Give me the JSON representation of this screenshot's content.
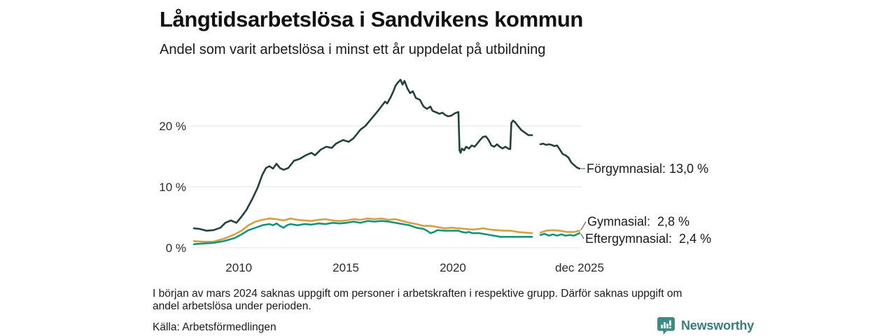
{
  "header": {
    "title": "Långtidsarbetslösa i Sandvikens kommun",
    "subtitle": "Andel som varit arbetslösa i minst ett år uppdelat på utbildning"
  },
  "chart_data": {
    "type": "line",
    "title": "Långtidsarbetslösa i Sandvikens kommun",
    "subtitle": "Andel som varit arbetslösa i minst ett år uppdelat på utbildning",
    "unit": "%",
    "xlim": [
      2007.9,
      2025.92
    ],
    "ylim": [
      0,
      29
    ],
    "grid": true,
    "grid_color": "#e3e3e3",
    "leader_color": "#4a4a4a",
    "yticks": [
      {
        "value": 0,
        "label": "0 %"
      },
      {
        "value": 10,
        "label": "10 %"
      },
      {
        "value": 20,
        "label": "20 %"
      }
    ],
    "xticks": [
      {
        "year": 2010,
        "label": "2010"
      },
      {
        "year": 2015,
        "label": "2015"
      },
      {
        "year": 2020,
        "label": "2020"
      },
      {
        "year": 2025.92,
        "label": "dec 2025"
      }
    ],
    "legend_position": "end-of-line-labels",
    "series": [
      {
        "name": "Förgymnasial",
        "color": "#24423d",
        "end_value": 13.0,
        "end_label": "Förgymnasial: 13,0 %",
        "segments": [
          [
            [
              2007.9,
              3.2
            ],
            [
              2008.16,
              3.1
            ],
            [
              2008.49,
              2.8
            ],
            [
              2008.82,
              2.9
            ],
            [
              2009.14,
              3.3
            ],
            [
              2009.37,
              4.1
            ],
            [
              2009.63,
              4.5
            ],
            [
              2009.89,
              4.1
            ],
            [
              2010.12,
              5.1
            ],
            [
              2010.35,
              6.2
            ],
            [
              2010.61,
              7.9
            ],
            [
              2010.88,
              9.9
            ],
            [
              2011.1,
              12.0
            ],
            [
              2011.27,
              13.1
            ],
            [
              2011.43,
              13.4
            ],
            [
              2011.6,
              13.0
            ],
            [
              2011.76,
              13.8
            ],
            [
              2011.92,
              13.1
            ],
            [
              2012.09,
              12.8
            ],
            [
              2012.31,
              13.1
            ],
            [
              2012.58,
              14.3
            ],
            [
              2012.84,
              14.6
            ],
            [
              2013.13,
              15.2
            ],
            [
              2013.39,
              15.6
            ],
            [
              2013.56,
              15.2
            ],
            [
              2013.82,
              16.1
            ],
            [
              2014.08,
              16.6
            ],
            [
              2014.34,
              16.4
            ],
            [
              2014.54,
              17.1
            ],
            [
              2014.87,
              17.7
            ],
            [
              2015.13,
              17.4
            ],
            [
              2015.36,
              18.0
            ],
            [
              2015.68,
              19.4
            ],
            [
              2015.91,
              20.0
            ],
            [
              2016.17,
              21.1
            ],
            [
              2016.5,
              22.5
            ],
            [
              2016.83,
              24.0
            ],
            [
              2016.93,
              23.7
            ],
            [
              2017.09,
              24.7
            ],
            [
              2017.22,
              25.7
            ],
            [
              2017.32,
              26.6
            ],
            [
              2017.42,
              27.1
            ],
            [
              2017.55,
              27.6
            ],
            [
              2017.65,
              26.8
            ],
            [
              2017.74,
              27.4
            ],
            [
              2017.87,
              26.2
            ],
            [
              2018.0,
              25.4
            ],
            [
              2018.13,
              25.7
            ],
            [
              2018.27,
              24.6
            ],
            [
              2018.46,
              24.3
            ],
            [
              2018.63,
              23.2
            ],
            [
              2018.79,
              22.8
            ],
            [
              2018.95,
              23.2
            ],
            [
              2019.05,
              22.5
            ],
            [
              2019.18,
              22.3
            ],
            [
              2019.38,
              22.0
            ],
            [
              2019.51,
              22.2
            ],
            [
              2019.64,
              21.8
            ],
            [
              2019.77,
              21.6
            ],
            [
              2019.93,
              21.7
            ],
            [
              2020.1,
              22.1
            ],
            [
              2020.26,
              22.3
            ],
            [
              2020.31,
              16.0
            ],
            [
              2020.36,
              15.6
            ],
            [
              2020.42,
              16.3
            ],
            [
              2020.52,
              16.0
            ],
            [
              2020.62,
              16.6
            ],
            [
              2020.75,
              16.3
            ],
            [
              2020.88,
              16.8
            ],
            [
              2021.01,
              16.6
            ],
            [
              2021.14,
              17.1
            ],
            [
              2021.27,
              17.7
            ],
            [
              2021.4,
              18.2
            ],
            [
              2021.54,
              18.3
            ],
            [
              2021.67,
              17.7
            ],
            [
              2021.8,
              16.8
            ],
            [
              2021.93,
              16.6
            ],
            [
              2022.06,
              17.0
            ],
            [
              2022.19,
              16.6
            ],
            [
              2022.32,
              16.3
            ],
            [
              2022.45,
              16.6
            ],
            [
              2022.58,
              16.3
            ],
            [
              2022.68,
              16.2
            ],
            [
              2022.73,
              20.5
            ],
            [
              2022.81,
              20.9
            ],
            [
              2022.91,
              20.6
            ],
            [
              2023.04,
              20.0
            ],
            [
              2023.21,
              19.3
            ],
            [
              2023.37,
              18.9
            ],
            [
              2023.53,
              18.5
            ],
            [
              2023.7,
              18.5
            ]
          ],
          [
            [
              2024.09,
              17.0
            ],
            [
              2024.22,
              17.1
            ],
            [
              2024.35,
              16.9
            ],
            [
              2024.48,
              17.0
            ],
            [
              2024.61,
              16.9
            ],
            [
              2024.74,
              16.7
            ],
            [
              2024.87,
              16.8
            ],
            [
              2025.0,
              16.1
            ],
            [
              2025.13,
              15.4
            ],
            [
              2025.26,
              15.2
            ],
            [
              2025.4,
              14.8
            ],
            [
              2025.53,
              14.0
            ],
            [
              2025.66,
              13.6
            ],
            [
              2025.79,
              13.2
            ],
            [
              2025.92,
              13.0
            ]
          ]
        ]
      },
      {
        "name": "Gymnasial",
        "color": "#d5a044",
        "end_value": 2.8,
        "end_label": "Gymnasial:  2,8 %",
        "segments": [
          [
            [
              2007.9,
              1.1
            ],
            [
              2008.33,
              1.0
            ],
            [
              2008.82,
              1.0
            ],
            [
              2009.31,
              1.5
            ],
            [
              2009.8,
              2.2
            ],
            [
              2010.12,
              2.8
            ],
            [
              2010.45,
              3.7
            ],
            [
              2010.78,
              4.3
            ],
            [
              2011.1,
              4.6
            ],
            [
              2011.43,
              4.8
            ],
            [
              2011.76,
              4.7
            ],
            [
              2012.09,
              4.5
            ],
            [
              2012.41,
              4.8
            ],
            [
              2012.74,
              4.6
            ],
            [
              2013.07,
              4.5
            ],
            [
              2013.39,
              4.4
            ],
            [
              2013.72,
              4.6
            ],
            [
              2014.05,
              4.7
            ],
            [
              2014.38,
              4.5
            ],
            [
              2014.7,
              4.4
            ],
            [
              2015.03,
              4.5
            ],
            [
              2015.36,
              4.7
            ],
            [
              2015.68,
              4.6
            ],
            [
              2016.01,
              4.8
            ],
            [
              2016.34,
              4.7
            ],
            [
              2016.66,
              4.8
            ],
            [
              2016.99,
              4.6
            ],
            [
              2017.32,
              4.7
            ],
            [
              2017.65,
              4.4
            ],
            [
              2017.97,
              4.1
            ],
            [
              2018.3,
              3.9
            ],
            [
              2018.63,
              3.6
            ],
            [
              2018.95,
              3.6
            ],
            [
              2019.28,
              3.4
            ],
            [
              2019.61,
              3.2
            ],
            [
              2019.93,
              3.3
            ],
            [
              2020.26,
              3.2
            ],
            [
              2020.59,
              3.1
            ],
            [
              2020.91,
              3.0
            ],
            [
              2021.24,
              3.1
            ],
            [
              2021.4,
              3.2
            ],
            [
              2021.73,
              3.0
            ],
            [
              2022.06,
              2.9
            ],
            [
              2022.39,
              2.8
            ],
            [
              2022.71,
              2.8
            ],
            [
              2023.04,
              2.6
            ],
            [
              2023.37,
              2.5
            ],
            [
              2023.7,
              2.4
            ]
          ],
          [
            [
              2024.09,
              2.5
            ],
            [
              2024.35,
              2.8
            ],
            [
              2024.67,
              2.9
            ],
            [
              2025.0,
              2.8
            ],
            [
              2025.33,
              2.6
            ],
            [
              2025.66,
              2.6
            ],
            [
              2025.92,
              2.8
            ]
          ]
        ]
      },
      {
        "name": "Eftergymnasial",
        "color": "#12957f",
        "end_value": 2.4,
        "end_label": "Eftergymnasial:  2,4 %",
        "segments": [
          [
            [
              2007.9,
              0.6
            ],
            [
              2008.33,
              0.7
            ],
            [
              2008.82,
              0.8
            ],
            [
              2009.31,
              1.1
            ],
            [
              2009.8,
              1.6
            ],
            [
              2010.12,
              2.2
            ],
            [
              2010.45,
              2.9
            ],
            [
              2010.78,
              3.3
            ],
            [
              2011.1,
              3.7
            ],
            [
              2011.43,
              3.9
            ],
            [
              2011.6,
              3.7
            ],
            [
              2011.76,
              4.0
            ],
            [
              2011.92,
              3.6
            ],
            [
              2012.09,
              3.3
            ],
            [
              2012.25,
              3.7
            ],
            [
              2012.41,
              3.9
            ],
            [
              2012.74,
              3.7
            ],
            [
              2013.07,
              3.9
            ],
            [
              2013.39,
              3.8
            ],
            [
              2013.72,
              4.0
            ],
            [
              2014.05,
              3.9
            ],
            [
              2014.38,
              4.1
            ],
            [
              2014.7,
              4.0
            ],
            [
              2015.03,
              4.1
            ],
            [
              2015.36,
              4.3
            ],
            [
              2015.68,
              4.1
            ],
            [
              2016.01,
              4.4
            ],
            [
              2016.34,
              4.3
            ],
            [
              2016.66,
              4.4
            ],
            [
              2016.99,
              4.3
            ],
            [
              2017.32,
              4.1
            ],
            [
              2017.65,
              3.9
            ],
            [
              2017.97,
              3.7
            ],
            [
              2018.3,
              3.3
            ],
            [
              2018.63,
              3.1
            ],
            [
              2018.79,
              2.8
            ],
            [
              2018.95,
              2.4
            ],
            [
              2019.12,
              2.6
            ],
            [
              2019.28,
              2.9
            ],
            [
              2019.61,
              2.8
            ],
            [
              2019.93,
              2.8
            ],
            [
              2020.26,
              2.8
            ],
            [
              2020.42,
              2.6
            ],
            [
              2020.59,
              2.5
            ],
            [
              2020.75,
              2.6
            ],
            [
              2020.91,
              2.4
            ],
            [
              2021.24,
              2.4
            ],
            [
              2021.57,
              2.2
            ],
            [
              2021.9,
              2.0
            ],
            [
              2022.22,
              1.8
            ],
            [
              2022.55,
              1.8
            ],
            [
              2022.88,
              1.8
            ],
            [
              2023.21,
              1.8
            ],
            [
              2023.53,
              1.8
            ],
            [
              2023.7,
              1.8
            ]
          ],
          [
            [
              2024.09,
              2.1
            ],
            [
              2024.28,
              2.3
            ],
            [
              2024.48,
              2.0
            ],
            [
              2024.67,
              2.2
            ],
            [
              2024.87,
              2.0
            ],
            [
              2025.06,
              2.2
            ],
            [
              2025.26,
              2.0
            ],
            [
              2025.46,
              2.1
            ],
            [
              2025.66,
              2.0
            ],
            [
              2025.92,
              2.4
            ]
          ]
        ]
      }
    ],
    "data_gap": {
      "from": 2023.85,
      "to": 2024.05
    }
  },
  "footer": {
    "note_line1": "I början av mars 2024 saknas uppgift om personer i arbetskraften i respektive grupp. Därför saknas uppgift om",
    "note_line2": "andel arbetslösa under perioden.",
    "source": "Källa: Arbetsförmedlingen",
    "brand": "Newsworthy"
  },
  "colors": {
    "forgymnasial": "#24423d",
    "gymnasial": "#d5a044",
    "eftergymnasial": "#12957f",
    "grid": "#e3e3e3",
    "brand_icon": "#3d8b86",
    "brand_text": "#397a7d"
  }
}
